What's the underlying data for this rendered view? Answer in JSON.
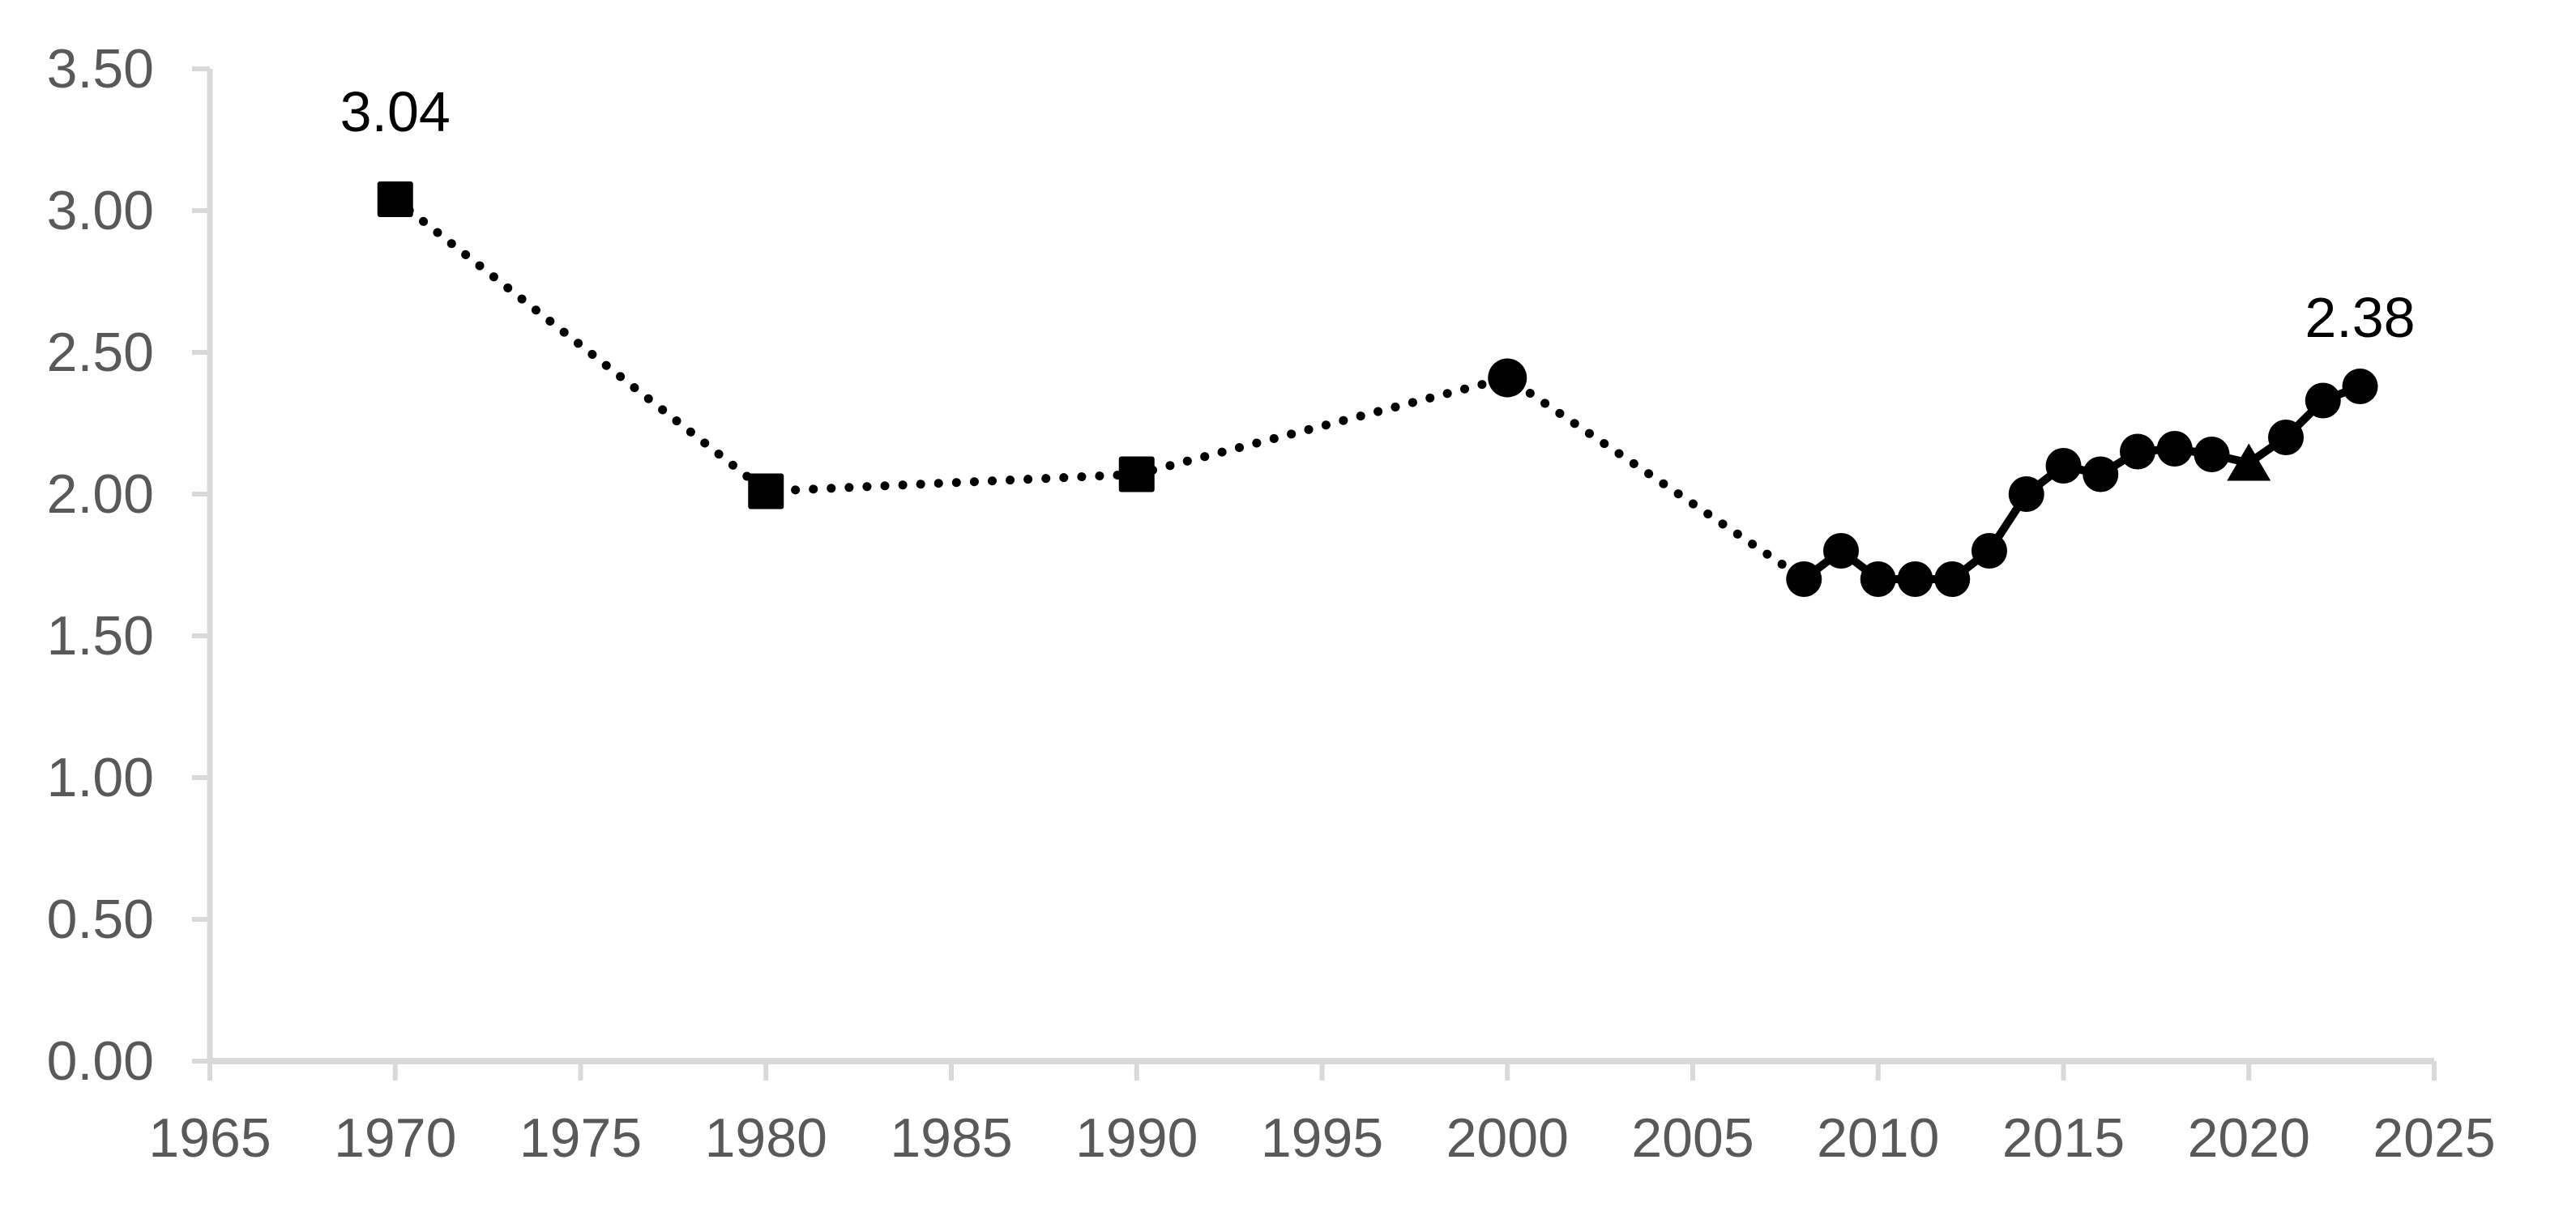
{
  "page": {
    "background_color": "#ffffff"
  },
  "chart_data": {
    "type": "line",
    "title": "",
    "xlabel": "",
    "ylabel": "",
    "xlim": [
      1965,
      2025
    ],
    "ylim": [
      0.0,
      3.5
    ],
    "grid": false,
    "legend": false,
    "colors": {
      "series": "#000000",
      "axis_line": "#d9d9d9",
      "tick_mark": "#d9d9d9",
      "axis_label": "#595959",
      "data_label": "#000000"
    },
    "x_ticks": [
      {
        "value": 1965,
        "label": "1965"
      },
      {
        "value": 1970,
        "label": "1970"
      },
      {
        "value": 1975,
        "label": "1975"
      },
      {
        "value": 1980,
        "label": "1980"
      },
      {
        "value": 1985,
        "label": "1985"
      },
      {
        "value": 1990,
        "label": "1990"
      },
      {
        "value": 1995,
        "label": "1995"
      },
      {
        "value": 2000,
        "label": "2000"
      },
      {
        "value": 2005,
        "label": "2005"
      },
      {
        "value": 2010,
        "label": "2010"
      },
      {
        "value": 2015,
        "label": "2015"
      },
      {
        "value": 2020,
        "label": "2020"
      },
      {
        "value": 2025,
        "label": "2025"
      }
    ],
    "y_ticks": [
      {
        "value": 0.0,
        "label": "0.00"
      },
      {
        "value": 0.5,
        "label": "0.50"
      },
      {
        "value": 1.0,
        "label": "1.00"
      },
      {
        "value": 1.5,
        "label": "1.50"
      },
      {
        "value": 2.0,
        "label": "2.00"
      },
      {
        "value": 2.5,
        "label": "2.50"
      },
      {
        "value": 3.0,
        "label": "3.00"
      },
      {
        "value": 3.5,
        "label": "3.50"
      }
    ],
    "series": [
      {
        "name": "decadal-estimates-dotted",
        "line_style": "dotted",
        "points": [
          {
            "x": 1970,
            "y": 3.04,
            "marker": "square"
          },
          {
            "x": 1980,
            "y": 2.01,
            "marker": "square"
          },
          {
            "x": 1990,
            "y": 2.07,
            "marker": "square"
          },
          {
            "x": 2000,
            "y": 2.41,
            "marker": "circle-large"
          },
          {
            "x": 2008,
            "y": 1.7,
            "marker": "none"
          }
        ]
      },
      {
        "name": "annual-estimates-solid",
        "line_style": "solid",
        "points": [
          {
            "x": 2008,
            "y": 1.7,
            "marker": "circle"
          },
          {
            "x": 2009,
            "y": 1.8,
            "marker": "circle"
          },
          {
            "x": 2010,
            "y": 1.7,
            "marker": "circle"
          },
          {
            "x": 2011,
            "y": 1.7,
            "marker": "circle"
          },
          {
            "x": 2012,
            "y": 1.7,
            "marker": "circle"
          },
          {
            "x": 2013,
            "y": 1.8,
            "marker": "circle"
          },
          {
            "x": 2014,
            "y": 2.0,
            "marker": "circle"
          },
          {
            "x": 2015,
            "y": 2.1,
            "marker": "circle"
          },
          {
            "x": 2016,
            "y": 2.07,
            "marker": "circle"
          },
          {
            "x": 2017,
            "y": 2.15,
            "marker": "circle"
          },
          {
            "x": 2018,
            "y": 2.16,
            "marker": "circle"
          },
          {
            "x": 2019,
            "y": 2.14,
            "marker": "circle"
          },
          {
            "x": 2020,
            "y": 2.11,
            "marker": "triangle"
          },
          {
            "x": 2021,
            "y": 2.2,
            "marker": "circle"
          },
          {
            "x": 2022,
            "y": 2.33,
            "marker": "circle"
          },
          {
            "x": 2023,
            "y": 2.38,
            "marker": "circle"
          }
        ]
      }
    ],
    "annotations": [
      {
        "text": "3.04",
        "x": 1970,
        "y": 3.04,
        "dy": -108
      },
      {
        "text": "2.38",
        "x": 2023,
        "y": 2.38,
        "dy": -85
      }
    ]
  }
}
